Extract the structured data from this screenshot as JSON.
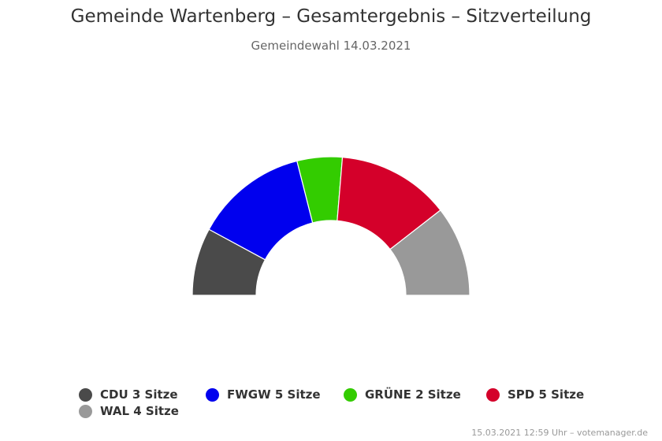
{
  "chart_data": {
    "type": "pie",
    "title": "Gemeinde Wartenberg – Gesamtergebnis – Sitzverteilung",
    "subtitle": "Gemeindewahl 14.03.2021",
    "series": [
      {
        "name": "CDU",
        "value": 3,
        "color": "#4a4a4a",
        "legend_label": "CDU 3 Sitze"
      },
      {
        "name": "FWGW",
        "value": 5,
        "color": "#0000ee",
        "legend_label": "FWGW 5 Sitze"
      },
      {
        "name": "GRÜNE",
        "value": 2,
        "color": "#33cc00",
        "legend_label": "GRÜNE 2 Sitze"
      },
      {
        "name": "SPD",
        "value": 5,
        "color": "#d4002a",
        "legend_label": "SPD 5 Sitze"
      },
      {
        "name": "WAL",
        "value": 4,
        "color": "#999999",
        "legend_label": "WAL 4 Sitze"
      }
    ],
    "legend_position": "bottom"
  },
  "credit": "15.03.2021 12:59 Uhr – votemanager.de"
}
